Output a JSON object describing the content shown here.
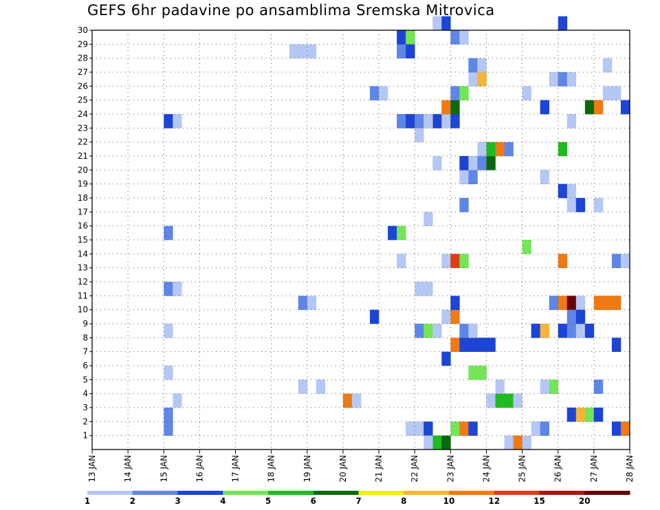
{
  "chart_data": {
    "type": "heatmap",
    "title": "GEFS 6hr padavine po ansamblima Sremska Mitrovica",
    "x_ticks": [
      "13 JAN",
      "14 JAN",
      "15 JAN",
      "16 JAN",
      "17 JAN",
      "18 JAN",
      "19 JAN",
      "20 JAN",
      "21 JAN",
      "22 JAN",
      "23 JAN",
      "24 JAN",
      "25 JAN",
      "26 JAN",
      "27 JAN",
      "28 JAN"
    ],
    "y_ticks": [
      1,
      2,
      3,
      4,
      5,
      6,
      7,
      8,
      9,
      10,
      11,
      12,
      13,
      14,
      15,
      16,
      17,
      18,
      19,
      20,
      21,
      22,
      23,
      24,
      25,
      26,
      27,
      28,
      29,
      30
    ],
    "xlim": [
      0,
      60
    ],
    "ylim": [
      0,
      30
    ],
    "grid": true,
    "legend": {
      "position": "bottom",
      "labels": [
        "1",
        "2",
        "3",
        "4",
        "5",
        "6",
        "7",
        "8",
        "10",
        "12",
        "15",
        "20"
      ],
      "colors": [
        "#b5c8f5",
        "#5e86e6",
        "#1c44d6",
        "#72e656",
        "#20bb20",
        "#0a6a0a",
        "#f0ee10",
        "#f6b43c",
        "#ef7a14",
        "#e03c14",
        "#a81810",
        "#680404"
      ]
    },
    "cells": [
      {
        "x": 8,
        "y": 1,
        "v": 2
      },
      {
        "x": 8,
        "y": 2,
        "v": 2
      },
      {
        "x": 9,
        "y": 3,
        "v": 1
      },
      {
        "x": 8,
        "y": 5,
        "v": 1
      },
      {
        "x": 8,
        "y": 8,
        "v": 1
      },
      {
        "x": 8,
        "y": 11,
        "v": 2
      },
      {
        "x": 9,
        "y": 11,
        "v": 1
      },
      {
        "x": 8,
        "y": 15,
        "v": 2
      },
      {
        "x": 8,
        "y": 23,
        "v": 3
      },
      {
        "x": 9,
        "y": 23,
        "v": 1
      },
      {
        "x": 22,
        "y": 28,
        "v": 1
      },
      {
        "x": 23,
        "y": 28,
        "v": 1
      },
      {
        "x": 24,
        "y": 28,
        "v": 1
      },
      {
        "x": 23,
        "y": 10,
        "v": 2
      },
      {
        "x": 24,
        "y": 10,
        "v": 1
      },
      {
        "x": 23,
        "y": 4,
        "v": 1
      },
      {
        "x": 25,
        "y": 4,
        "v": 1
      },
      {
        "x": 28,
        "y": 3,
        "v": 10
      },
      {
        "x": 29,
        "y": 3,
        "v": 1
      },
      {
        "x": 31,
        "y": 9,
        "v": 3
      },
      {
        "x": 31,
        "y": 25,
        "v": 2
      },
      {
        "x": 32,
        "y": 25,
        "v": 1
      },
      {
        "x": 33,
        "y": 15,
        "v": 3
      },
      {
        "x": 34,
        "y": 15,
        "v": 4
      },
      {
        "x": 34,
        "y": 13,
        "v": 1
      },
      {
        "x": 34,
        "y": 23,
        "v": 2
      },
      {
        "x": 35,
        "y": 23,
        "v": 3
      },
      {
        "x": 36,
        "y": 23,
        "v": 2
      },
      {
        "x": 34,
        "y": 28,
        "v": 2
      },
      {
        "x": 35,
        "y": 28,
        "v": 3
      },
      {
        "x": 34,
        "y": 29,
        "v": 3
      },
      {
        "x": 35,
        "y": 29,
        "v": 4
      },
      {
        "x": 35,
        "y": 1,
        "v": 1
      },
      {
        "x": 36,
        "y": 1,
        "v": 1
      },
      {
        "x": 37,
        "y": 1,
        "v": 3
      },
      {
        "x": 38,
        "y": 0,
        "v": 5
      },
      {
        "x": 37,
        "y": 0,
        "v": 1
      },
      {
        "x": 39,
        "y": 0,
        "v": 6
      },
      {
        "x": 36,
        "y": 8,
        "v": 2
      },
      {
        "x": 37,
        "y": 8,
        "v": 4
      },
      {
        "x": 38,
        "y": 8,
        "v": 1
      },
      {
        "x": 36,
        "y": 11,
        "v": 1
      },
      {
        "x": 37,
        "y": 11,
        "v": 1
      },
      {
        "x": 36,
        "y": 22,
        "v": 1
      },
      {
        "x": 37,
        "y": 16,
        "v": 1
      },
      {
        "x": 38,
        "y": 20,
        "v": 1
      },
      {
        "x": 38,
        "y": 23,
        "v": 3
      },
      {
        "x": 37,
        "y": 23,
        "v": 1
      },
      {
        "x": 39,
        "y": 23,
        "v": 1
      },
      {
        "x": 38,
        "y": 30,
        "v": 1
      },
      {
        "x": 39,
        "y": 30,
        "v": 3
      },
      {
        "x": 39,
        "y": 6,
        "v": 3
      },
      {
        "x": 39,
        "y": 9,
        "v": 1
      },
      {
        "x": 40,
        "y": 9,
        "v": 11
      },
      {
        "x": 39,
        "y": 13,
        "v": 1
      },
      {
        "x": 40,
        "y": 13,
        "v": 13
      },
      {
        "x": 41,
        "y": 13,
        "v": 4
      },
      {
        "x": 39,
        "y": 24,
        "v": 10
      },
      {
        "x": 40,
        "y": 24,
        "v": 6
      },
      {
        "x": 40,
        "y": 23,
        "v": 3
      },
      {
        "x": 40,
        "y": 10,
        "v": 3
      },
      {
        "x": 40,
        "y": 7,
        "v": 10
      },
      {
        "x": 41,
        "y": 7,
        "v": 3
      },
      {
        "x": 42,
        "y": 7,
        "v": 3
      },
      {
        "x": 43,
        "y": 7,
        "v": 3
      },
      {
        "x": 44,
        "y": 7,
        "v": 3
      },
      {
        "x": 40,
        "y": 1,
        "v": 4
      },
      {
        "x": 41,
        "y": 1,
        "v": 11
      },
      {
        "x": 42,
        "y": 1,
        "v": 3
      },
      {
        "x": 40,
        "y": 25,
        "v": 2
      },
      {
        "x": 41,
        "y": 25,
        "v": 4
      },
      {
        "x": 40,
        "y": 29,
        "v": 2
      },
      {
        "x": 41,
        "y": 29,
        "v": 1
      },
      {
        "x": 41,
        "y": 8,
        "v": 2
      },
      {
        "x": 42,
        "y": 8,
        "v": 1
      },
      {
        "x": 41,
        "y": 17,
        "v": 2
      },
      {
        "x": 41,
        "y": 19,
        "v": 1
      },
      {
        "x": 42,
        "y": 19,
        "v": 2
      },
      {
        "x": 41,
        "y": 20,
        "v": 3
      },
      {
        "x": 42,
        "y": 20,
        "v": 1
      },
      {
        "x": 43,
        "y": 20,
        "v": 2
      },
      {
        "x": 44,
        "y": 20,
        "v": 6
      },
      {
        "x": 42,
        "y": 26,
        "v": 1
      },
      {
        "x": 43,
        "y": 26,
        "v": 8
      },
      {
        "x": 42,
        "y": 27,
        "v": 2
      },
      {
        "x": 43,
        "y": 27,
        "v": 1
      },
      {
        "x": 42,
        "y": 5,
        "v": 4
      },
      {
        "x": 43,
        "y": 5,
        "v": 4
      },
      {
        "x": 43,
        "y": 21,
        "v": 1
      },
      {
        "x": 44,
        "y": 21,
        "v": 5
      },
      {
        "x": 45,
        "y": 21,
        "v": 10
      },
      {
        "x": 46,
        "y": 21,
        "v": 2
      },
      {
        "x": 44,
        "y": 3,
        "v": 1
      },
      {
        "x": 45,
        "y": 3,
        "v": 5
      },
      {
        "x": 46,
        "y": 3,
        "v": 5
      },
      {
        "x": 47,
        "y": 3,
        "v": 1
      },
      {
        "x": 45,
        "y": 4,
        "v": 1
      },
      {
        "x": 46,
        "y": 0,
        "v": 1
      },
      {
        "x": 47,
        "y": 0,
        "v": 11
      },
      {
        "x": 48,
        "y": 0,
        "v": 1
      },
      {
        "x": 48,
        "y": 25,
        "v": 1
      },
      {
        "x": 48,
        "y": 14,
        "v": 4
      },
      {
        "x": 49,
        "y": 1,
        "v": 1
      },
      {
        "x": 50,
        "y": 1,
        "v": 2
      },
      {
        "x": 49,
        "y": 8,
        "v": 3
      },
      {
        "x": 50,
        "y": 8,
        "v": 8
      },
      {
        "x": 50,
        "y": 24,
        "v": 3
      },
      {
        "x": 50,
        "y": 19,
        "v": 1
      },
      {
        "x": 50,
        "y": 4,
        "v": 1
      },
      {
        "x": 51,
        "y": 4,
        "v": 4
      },
      {
        "x": 51,
        "y": 10,
        "v": 2
      },
      {
        "x": 52,
        "y": 10,
        "v": 10
      },
      {
        "x": 53,
        "y": 10,
        "v": 20
      },
      {
        "x": 54,
        "y": 10,
        "v": 1
      },
      {
        "x": 51,
        "y": 26,
        "v": 1
      },
      {
        "x": 52,
        "y": 26,
        "v": 2
      },
      {
        "x": 53,
        "y": 26,
        "v": 1
      },
      {
        "x": 52,
        "y": 18,
        "v": 3
      },
      {
        "x": 53,
        "y": 18,
        "v": 1
      },
      {
        "x": 52,
        "y": 21,
        "v": 5
      },
      {
        "x": 52,
        "y": 30,
        "v": 3
      },
      {
        "x": 52,
        "y": 8,
        "v": 3
      },
      {
        "x": 53,
        "y": 8,
        "v": 2
      },
      {
        "x": 54,
        "y": 8,
        "v": 1
      },
      {
        "x": 55,
        "y": 8,
        "v": 3
      },
      {
        "x": 53,
        "y": 9,
        "v": 2
      },
      {
        "x": 54,
        "y": 9,
        "v": 3
      },
      {
        "x": 52,
        "y": 13,
        "v": 10
      },
      {
        "x": 53,
        "y": 2,
        "v": 3
      },
      {
        "x": 54,
        "y": 2,
        "v": 8
      },
      {
        "x": 55,
        "y": 2,
        "v": 4
      },
      {
        "x": 56,
        "y": 2,
        "v": 3
      },
      {
        "x": 53,
        "y": 17,
        "v": 1
      },
      {
        "x": 54,
        "y": 17,
        "v": 3
      },
      {
        "x": 53,
        "y": 23,
        "v": 1
      },
      {
        "x": 55,
        "y": 24,
        "v": 6
      },
      {
        "x": 56,
        "y": 24,
        "v": 11
      },
      {
        "x": 56,
        "y": 4,
        "v": 2
      },
      {
        "x": 56,
        "y": 17,
        "v": 1
      },
      {
        "x": 56,
        "y": 10,
        "v": 11
      },
      {
        "x": 57,
        "y": 10,
        "v": 11
      },
      {
        "x": 58,
        "y": 10,
        "v": 11
      },
      {
        "x": 57,
        "y": 25,
        "v": 1
      },
      {
        "x": 58,
        "y": 25,
        "v": 1
      },
      {
        "x": 57,
        "y": 27,
        "v": 1
      },
      {
        "x": 58,
        "y": 7,
        "v": 3
      },
      {
        "x": 58,
        "y": 1,
        "v": 3
      },
      {
        "x": 59,
        "y": 1,
        "v": 11
      },
      {
        "x": 58,
        "y": 13,
        "v": 2
      },
      {
        "x": 59,
        "y": 13,
        "v": 1
      },
      {
        "x": 59,
        "y": 24,
        "v": 3
      }
    ]
  }
}
